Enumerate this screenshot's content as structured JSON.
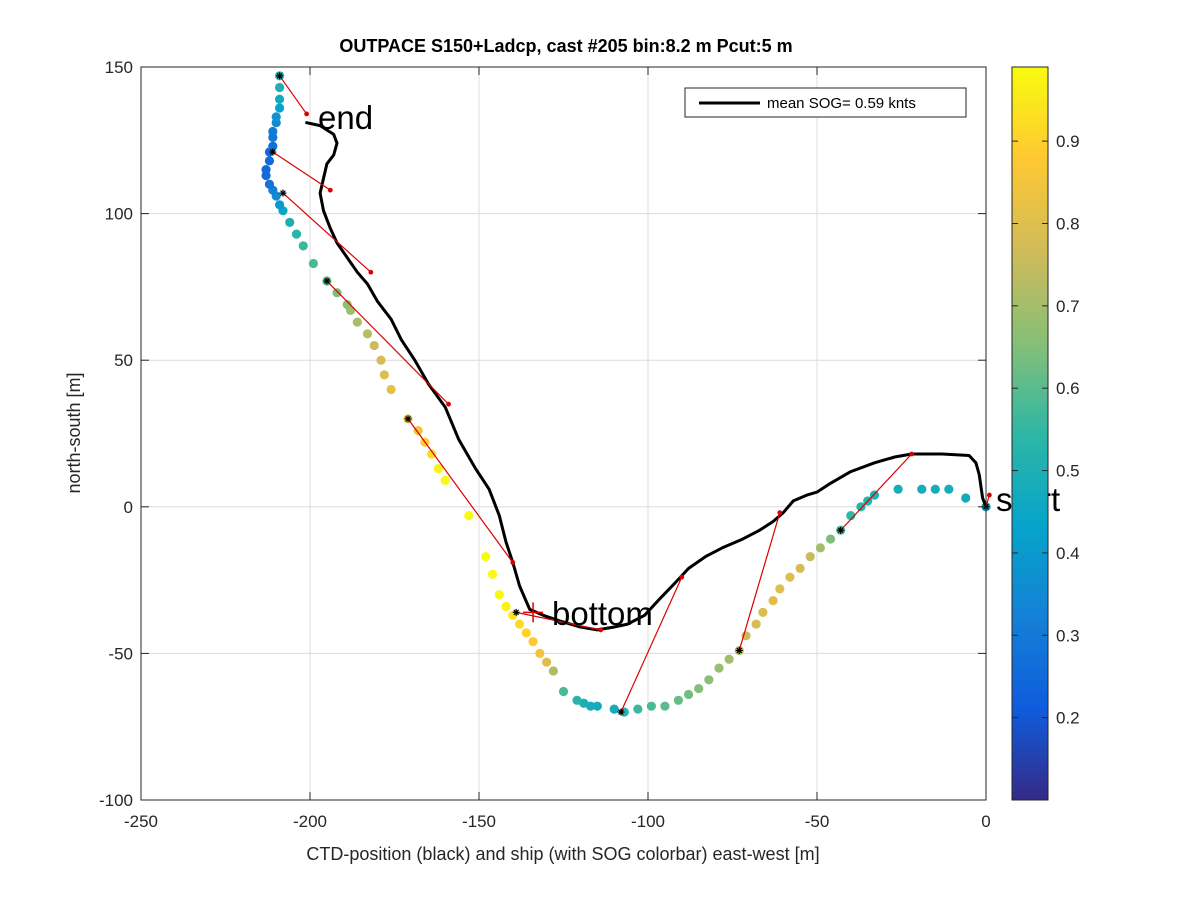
{
  "chart_data": {
    "type": "scatter",
    "title": "OUTPACE S150+Ladcp, cast #205 bin:8.2 m  Pcut:5 m",
    "xlabel": "CTD-position (black) and ship (with SOG colorbar) east-west [m]",
    "ylabel": "north-south [m]",
    "xlim": [
      -250,
      0
    ],
    "ylim": [
      -100,
      150
    ],
    "xticks": [
      -250,
      -200,
      -150,
      -100,
      -50,
      0
    ],
    "yticks": [
      -100,
      -50,
      0,
      50,
      100,
      150
    ],
    "grid": true,
    "legend": {
      "placement": "top-right",
      "entries": [
        {
          "label": "mean SOG=  0.59 knts",
          "color": "#000000"
        }
      ]
    },
    "annotations": [
      {
        "text": "end",
        "x": -201,
        "y": 131
      },
      {
        "text": "bottom",
        "x": -128,
        "y": -36
      },
      {
        "text": "start",
        "x": 3,
        "y": 3
      }
    ],
    "colorbar": {
      "range": [
        0.1,
        0.99
      ],
      "ticks": [
        0.2,
        0.3,
        0.4,
        0.5,
        0.6,
        0.7,
        0.8,
        0.9
      ],
      "colormap": "parula"
    },
    "series": [
      {
        "name": "CTD-position (black)",
        "kind": "line",
        "color": "#000000",
        "points": [
          [
            0,
            0
          ],
          [
            -1,
            3
          ],
          [
            -2,
            11
          ],
          [
            -3,
            15
          ],
          [
            -5,
            17.5
          ],
          [
            -13,
            18
          ],
          [
            -22,
            18
          ],
          [
            -27,
            17
          ],
          [
            -33,
            15
          ],
          [
            -40,
            12
          ],
          [
            -46,
            8
          ],
          [
            -50,
            5
          ],
          [
            -53,
            4
          ],
          [
            -57,
            2
          ],
          [
            -60,
            -2
          ],
          [
            -63,
            -5
          ],
          [
            -67,
            -8
          ],
          [
            -72,
            -11
          ],
          [
            -78,
            -14
          ],
          [
            -83,
            -17
          ],
          [
            -88,
            -21
          ],
          [
            -92,
            -26
          ],
          [
            -97,
            -32
          ],
          [
            -101,
            -37
          ],
          [
            -106,
            -40
          ],
          [
            -110,
            -41
          ],
          [
            -115,
            -42
          ],
          [
            -120,
            -41
          ],
          [
            -126,
            -39
          ],
          [
            -131,
            -37
          ],
          [
            -135,
            -35
          ],
          [
            -138,
            -27
          ],
          [
            -140,
            -19
          ],
          [
            -142,
            -12
          ],
          [
            -144,
            -3
          ],
          [
            -147,
            6
          ],
          [
            -151,
            13
          ],
          [
            -156,
            23
          ],
          [
            -160,
            34
          ],
          [
            -165,
            42
          ],
          [
            -169,
            50
          ],
          [
            -173,
            57
          ],
          [
            -176,
            64
          ],
          [
            -180,
            70
          ],
          [
            -183,
            76
          ],
          [
            -186,
            80
          ],
          [
            -189,
            85
          ],
          [
            -192,
            90
          ],
          [
            -194,
            95
          ],
          [
            -196,
            101
          ],
          [
            -197,
            107
          ],
          [
            -196,
            112
          ],
          [
            -195,
            117
          ],
          [
            -193,
            120
          ],
          [
            -192,
            124
          ],
          [
            -193,
            127
          ],
          [
            -197,
            130
          ],
          [
            -201,
            131
          ]
        ]
      },
      {
        "name": "ship (with SOG colorbar)",
        "kind": "scatter",
        "points": [
          [
            0,
            0,
            0.45
          ],
          [
            -6,
            3,
            0.47
          ],
          [
            -11,
            6,
            0.48
          ],
          [
            -15,
            6,
            0.48
          ],
          [
            -19,
            6,
            0.48
          ],
          [
            -26,
            6,
            0.48
          ],
          [
            -33,
            4,
            0.5
          ],
          [
            -35,
            2,
            0.52
          ],
          [
            -37,
            0,
            0.53
          ],
          [
            -40,
            -3,
            0.55
          ],
          [
            -43,
            -8,
            0.58
          ],
          [
            -46,
            -11,
            0.64
          ],
          [
            -49,
            -14,
            0.7
          ],
          [
            -52,
            -17,
            0.75
          ],
          [
            -55,
            -21,
            0.78
          ],
          [
            -58,
            -24,
            0.8
          ],
          [
            -61,
            -28,
            0.8
          ],
          [
            -63,
            -32,
            0.8
          ],
          [
            -66,
            -36,
            0.79
          ],
          [
            -68,
            -40,
            0.78
          ],
          [
            -71,
            -44,
            0.76
          ],
          [
            -73,
            -49,
            0.73
          ],
          [
            -76,
            -52,
            0.7
          ],
          [
            -79,
            -55,
            0.68
          ],
          [
            -82,
            -59,
            0.66
          ],
          [
            -85,
            -62,
            0.65
          ],
          [
            -88,
            -64,
            0.63
          ],
          [
            -91,
            -66,
            0.62
          ],
          [
            -95,
            -68,
            0.6
          ],
          [
            -99,
            -68,
            0.58
          ],
          [
            -103,
            -69,
            0.56
          ],
          [
            -107,
            -70,
            0.52
          ],
          [
            -110,
            -69,
            0.48
          ],
          [
            -115,
            -68,
            0.47
          ],
          [
            -117,
            -68,
            0.48
          ],
          [
            -119,
            -67,
            0.5
          ],
          [
            -121,
            -66,
            0.53
          ],
          [
            -125,
            -63,
            0.58
          ],
          [
            -128,
            -56,
            0.72
          ],
          [
            -130,
            -53,
            0.8
          ],
          [
            -132,
            -50,
            0.85
          ],
          [
            -134,
            -46,
            0.88
          ],
          [
            -136,
            -43,
            0.9
          ],
          [
            -138,
            -40,
            0.92
          ],
          [
            -140,
            -37,
            0.95
          ],
          [
            -142,
            -34,
            0.97
          ],
          [
            -144,
            -30,
            0.98
          ],
          [
            -146,
            -23,
            0.99
          ],
          [
            -148,
            -17,
            0.99
          ],
          [
            -153,
            -3,
            0.99
          ],
          [
            -160,
            9,
            0.99
          ],
          [
            -162,
            13,
            0.97
          ],
          [
            -164,
            18,
            0.92
          ],
          [
            -166,
            22,
            0.88
          ],
          [
            -168,
            26,
            0.85
          ],
          [
            -171,
            30,
            0.83
          ],
          [
            -176,
            40,
            0.82
          ],
          [
            -178,
            45,
            0.8
          ],
          [
            -179,
            50,
            0.78
          ],
          [
            -181,
            55,
            0.76
          ],
          [
            -183,
            59,
            0.73
          ],
          [
            -186,
            63,
            0.71
          ],
          [
            -188,
            67,
            0.69
          ],
          [
            -189,
            69,
            0.67
          ],
          [
            -192,
            73,
            0.64
          ],
          [
            -195,
            77,
            0.61
          ],
          [
            -199,
            83,
            0.58
          ],
          [
            -202,
            89,
            0.56
          ],
          [
            -204,
            93,
            0.53
          ],
          [
            -206,
            97,
            0.5
          ],
          [
            -208,
            101,
            0.45
          ],
          [
            -209,
            103,
            0.4
          ],
          [
            -210,
            106,
            0.36
          ],
          [
            -211,
            108,
            0.32
          ],
          [
            -212,
            110,
            0.28
          ],
          [
            -213,
            113,
            0.25
          ],
          [
            -213,
            115,
            0.25
          ],
          [
            -212,
            118,
            0.25
          ],
          [
            -212,
            121,
            0.25
          ],
          [
            -211,
            123,
            0.27
          ],
          [
            -211,
            126,
            0.29
          ],
          [
            -211,
            128,
            0.3
          ],
          [
            -210,
            131,
            0.34
          ],
          [
            -210,
            133,
            0.38
          ],
          [
            -209,
            136,
            0.43
          ],
          [
            -209,
            139,
            0.47
          ],
          [
            -209,
            143,
            0.5
          ],
          [
            -209,
            147,
            0.52
          ]
        ]
      },
      {
        "name": "ship markers",
        "kind": "marker",
        "color": "#000000",
        "points": [
          [
            0,
            0
          ],
          [
            -43,
            -8
          ],
          [
            -73,
            -49
          ],
          [
            -108,
            -70
          ],
          [
            -139,
            -36
          ],
          [
            -171,
            30
          ],
          [
            -195,
            77
          ],
          [
            -208,
            107
          ],
          [
            -211,
            121
          ],
          [
            -209,
            147
          ]
        ]
      },
      {
        "name": "connectors",
        "kind": "segments",
        "color": "#dd0000",
        "pairs": [
          [
            [
              0,
              0
            ],
            [
              1,
              4
            ]
          ],
          [
            [
              -43,
              -8
            ],
            [
              -22,
              18
            ]
          ],
          [
            [
              -73,
              -49
            ],
            [
              -61,
              -2
            ]
          ],
          [
            [
              -108,
              -70
            ],
            [
              -90,
              -24
            ]
          ],
          [
            [
              -139,
              -36
            ],
            [
              -114,
              -42
            ]
          ],
          [
            [
              -171,
              30
            ],
            [
              -140,
              -19
            ]
          ],
          [
            [
              -195,
              77
            ],
            [
              -159,
              35
            ]
          ],
          [
            [
              -208,
              107
            ],
            [
              -182,
              80
            ]
          ],
          [
            [
              -211,
              121
            ],
            [
              -194,
              108
            ]
          ],
          [
            [
              -209,
              147
            ],
            [
              -201,
              134
            ]
          ]
        ]
      }
    ]
  }
}
